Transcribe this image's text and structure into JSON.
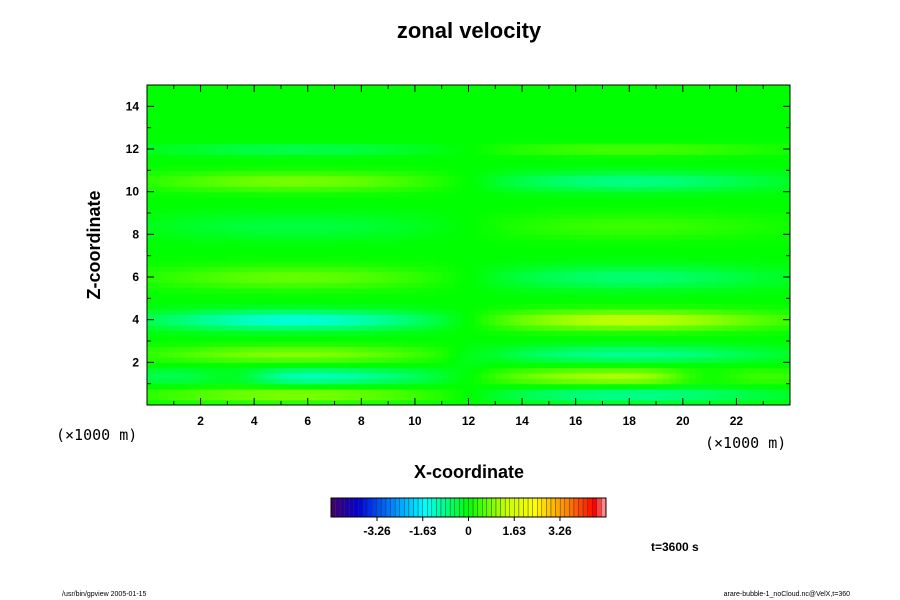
{
  "chart_data": {
    "type": "heatmap",
    "title": "zonal velocity",
    "xlabel": "X-coordinate",
    "ylabel": "Z-coordinate",
    "x_unit": "(×1000 m)",
    "z_unit": "(×1000 m)",
    "xlim": [
      0,
      24
    ],
    "ylim": [
      0,
      15
    ],
    "x_ticks": [
      "2",
      "4",
      "6",
      "8",
      "10",
      "12",
      "14",
      "16",
      "18",
      "20",
      "22"
    ],
    "y_ticks": [
      "2",
      "4",
      "6",
      "8",
      "10",
      "12",
      "14"
    ],
    "colorbar": {
      "range": [
        -4.9,
        4.9
      ],
      "tick_values": [
        -3.26,
        -1.63,
        0,
        1.63,
        3.26
      ],
      "tick_labels": [
        "-3.26",
        "-1.63",
        "0",
        "1.63",
        "3.26"
      ]
    },
    "time_label": "t=3600 s",
    "features": [
      {
        "x": 5.5,
        "z": 4.0,
        "value": -1.6
      },
      {
        "x": 18.0,
        "z": 4.0,
        "value": 1.6
      },
      {
        "x": 3.5,
        "z": 1.3,
        "value": -1.4
      },
      {
        "x": 21.0,
        "z": 1.3,
        "value": 1.5
      },
      {
        "x": 7.0,
        "z": 10.5,
        "value": 0.8
      },
      {
        "x": 17.5,
        "z": 10.5,
        "value": -0.9
      },
      {
        "x": 6.0,
        "z": 2.4,
        "value": 0.9
      },
      {
        "x": 16.0,
        "z": 2.4,
        "value": -0.9
      }
    ]
  },
  "footer": {
    "left": "/usr/bin/gpview 2005-01-15",
    "right": "arare-bubble-1_noCloud.nc@VelX,t=360"
  },
  "colors": {
    "background_zero": "#00ff00",
    "frame": "#000000"
  }
}
